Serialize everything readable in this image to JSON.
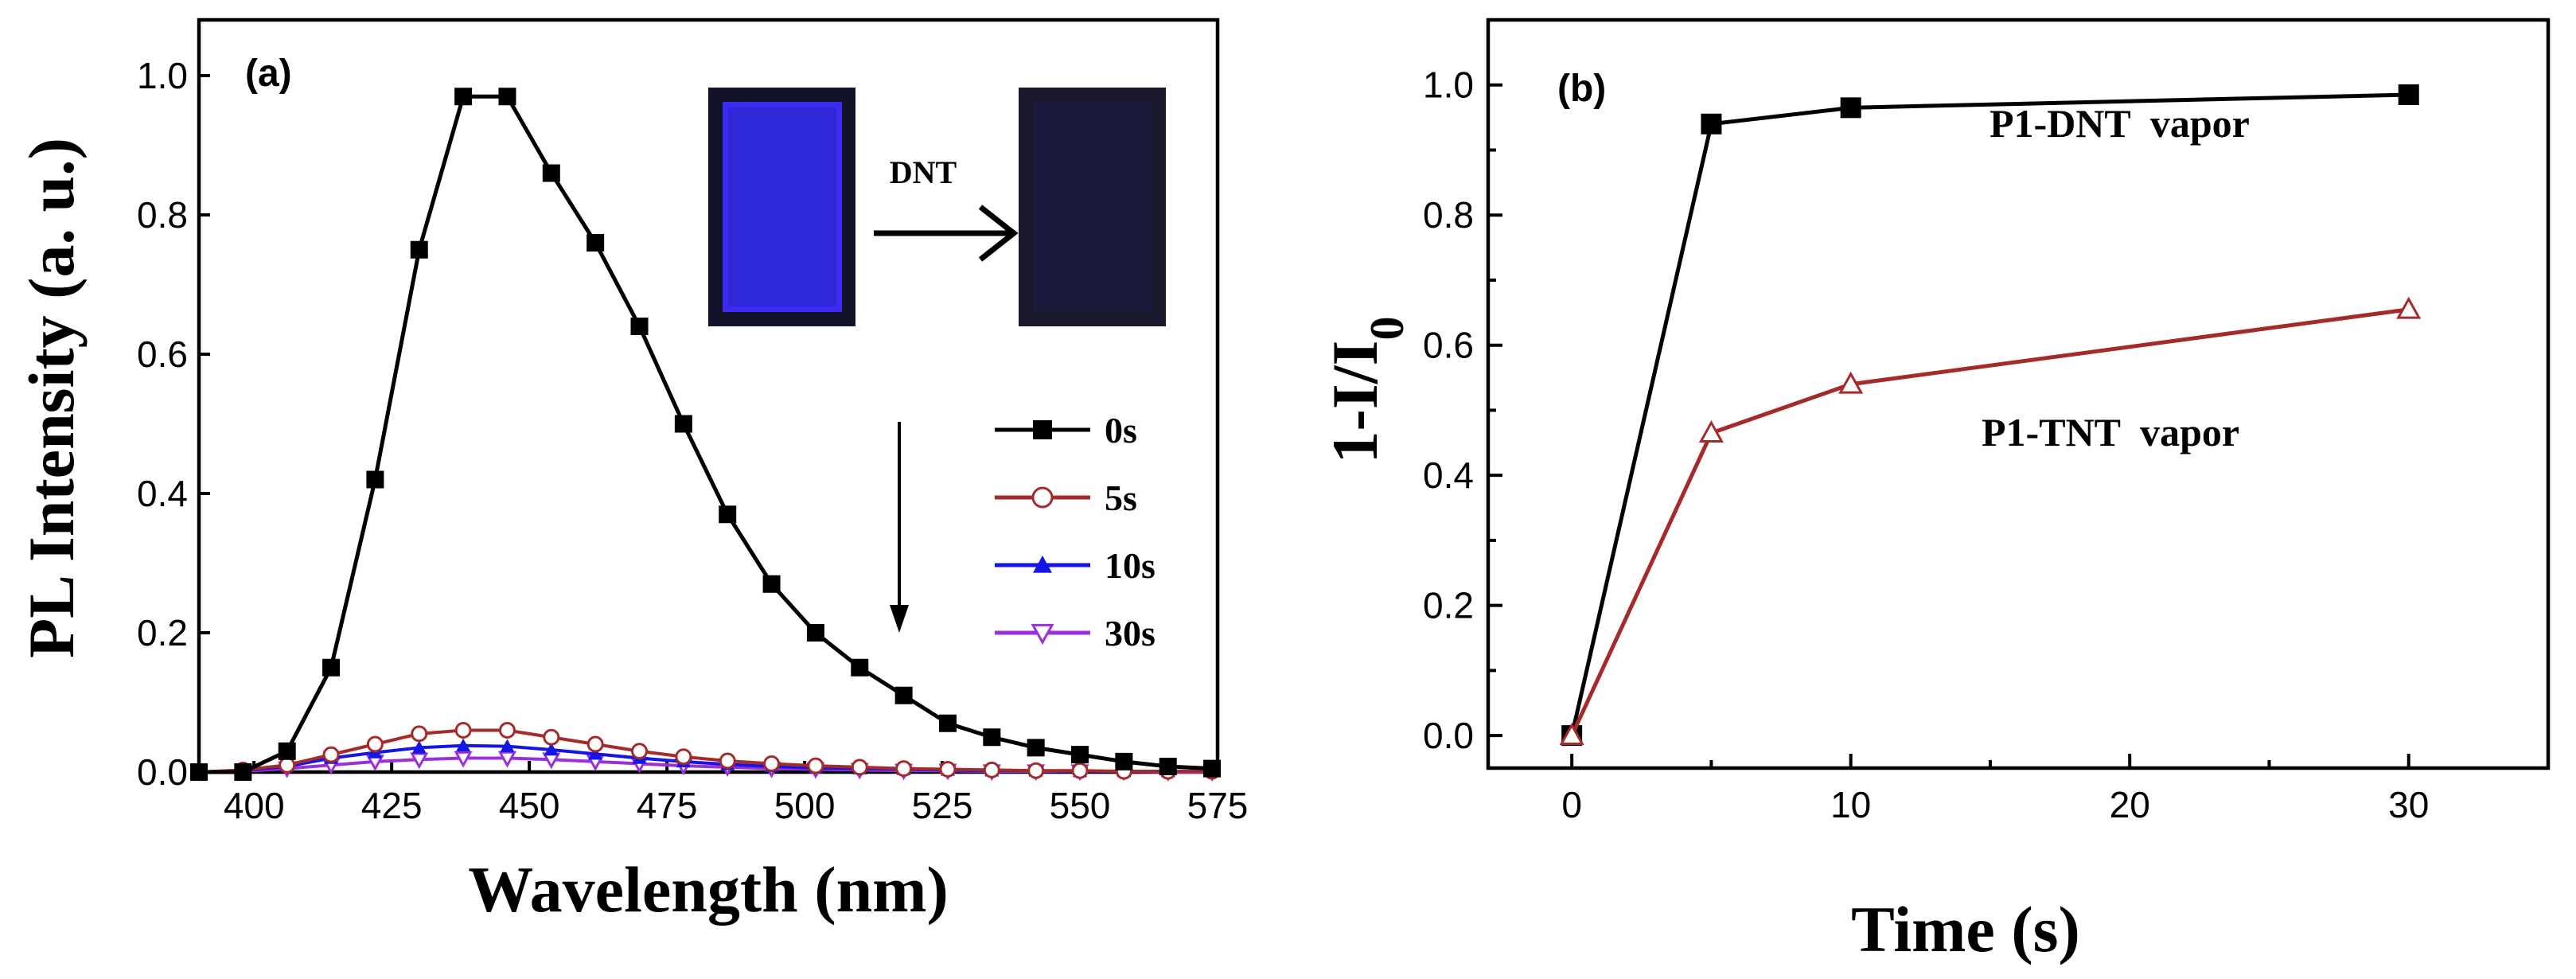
{
  "chart_data": [
    {
      "panel": "(a)",
      "type": "line",
      "xlabel": "Wavelength (nm)",
      "ylabel": "PL Intensity (a. u.)",
      "xlim": [
        390,
        575
      ],
      "ylim": [
        0,
        1.08
      ],
      "xticks": [
        400,
        425,
        450,
        475,
        500,
        525,
        550,
        575
      ],
      "yticks": [
        0.0,
        0.2,
        0.4,
        0.6,
        0.8,
        1.0
      ],
      "ytick_labels": [
        "0.0",
        "0.2",
        "0.4",
        "0.6",
        "0.8",
        "1.0"
      ],
      "x": [
        390,
        398,
        406,
        414,
        422,
        430,
        438,
        446,
        454,
        462,
        470,
        478,
        486,
        494,
        502,
        510,
        518,
        526,
        534,
        542,
        550,
        558,
        566,
        574
      ],
      "series": [
        {
          "name": "0s",
          "color": "#000000",
          "marker": "square-filled",
          "values": [
            0.0,
            0.0,
            0.03,
            0.15,
            0.42,
            0.75,
            0.97,
            0.97,
            0.86,
            0.76,
            0.64,
            0.5,
            0.37,
            0.27,
            0.2,
            0.15,
            0.11,
            0.07,
            0.05,
            0.035,
            0.025,
            0.015,
            0.008,
            0.005
          ]
        },
        {
          "name": "5s",
          "color": "#a52a2a",
          "marker": "circle-open",
          "values": [
            0.0,
            0.003,
            0.01,
            0.025,
            0.04,
            0.055,
            0.06,
            0.06,
            0.05,
            0.04,
            0.03,
            0.022,
            0.016,
            0.012,
            0.009,
            0.007,
            0.005,
            0.004,
            0.003,
            0.002,
            0.002,
            0.001,
            0.001,
            0.001
          ]
        },
        {
          "name": "10s",
          "color": "#1515e6",
          "marker": "triangle-up-filled",
          "values": [
            0.0,
            0.002,
            0.008,
            0.02,
            0.028,
            0.035,
            0.038,
            0.037,
            0.032,
            0.026,
            0.02,
            0.015,
            0.011,
            0.008,
            0.006,
            0.005,
            0.004,
            0.003,
            0.002,
            0.002,
            0.001,
            0.001,
            0.001,
            0.001
          ]
        },
        {
          "name": "30s",
          "color": "#9b30d9",
          "marker": "triangle-down-open",
          "values": [
            0.0,
            0.001,
            0.005,
            0.01,
            0.015,
            0.018,
            0.02,
            0.02,
            0.018,
            0.015,
            0.012,
            0.009,
            0.007,
            0.005,
            0.004,
            0.003,
            0.002,
            0.002,
            0.001,
            0.001,
            0.001,
            0.001,
            0.0,
            0.0
          ]
        }
      ],
      "legend_position": "center-right",
      "annotations": {
        "inset_label": "DNT"
      }
    },
    {
      "panel": "(b)",
      "type": "line",
      "xlabel": "Time (s)",
      "ylabel": "1-I/I0",
      "xlim": [
        -3,
        35
      ],
      "ylim": [
        -0.05,
        1.1
      ],
      "xticks": [
        0,
        10,
        20,
        30
      ],
      "yticks": [
        0.0,
        0.2,
        0.4,
        0.6,
        0.8,
        1.0
      ],
      "ytick_labels": [
        "0.0",
        "0.2",
        "0.4",
        "0.6",
        "0.8",
        "1.0"
      ],
      "x": [
        0,
        5,
        10,
        30
      ],
      "series": [
        {
          "name": "P1-DNT  vapor",
          "color": "#000000",
          "marker": "square-filled",
          "values": [
            0.0,
            0.94,
            0.965,
            0.985
          ]
        },
        {
          "name": "P1-TNT  vapor",
          "color": "#a52a2a",
          "marker": "triangle-up-open",
          "values": [
            0.0,
            0.465,
            0.54,
            0.655
          ]
        }
      ]
    }
  ]
}
